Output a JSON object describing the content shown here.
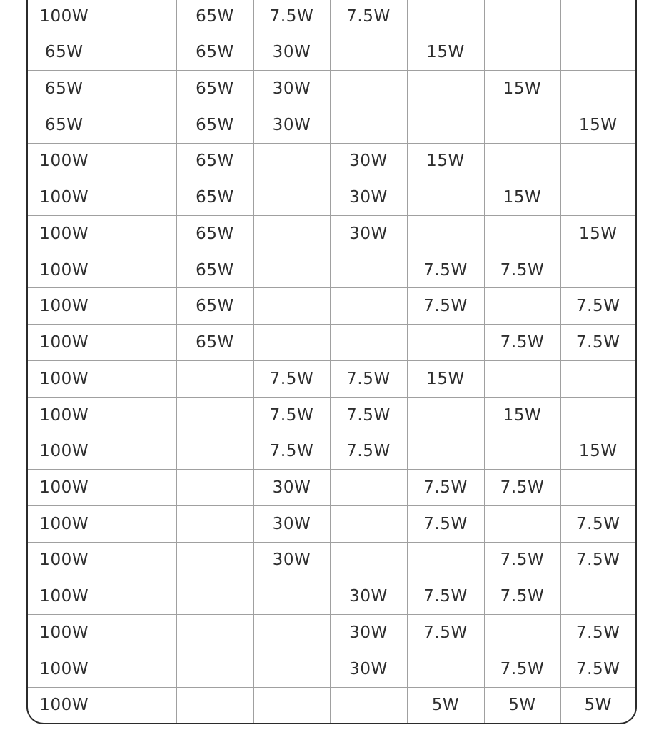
{
  "style": {
    "background": "#ffffff",
    "outer_border_color": "#2b2b2b",
    "grid_line_color": "#a0a0a0",
    "text_color": "#2e2e2e"
  },
  "chart_data": {
    "type": "table",
    "title": "",
    "num_columns": 8,
    "num_rows": 20,
    "column_headers_visible": false,
    "rows": [
      [
        "100W",
        "",
        "65W",
        "7.5W",
        "7.5W",
        "",
        "",
        ""
      ],
      [
        "65W",
        "",
        "65W",
        "30W",
        "",
        "15W",
        "",
        ""
      ],
      [
        "65W",
        "",
        "65W",
        "30W",
        "",
        "",
        "15W",
        ""
      ],
      [
        "65W",
        "",
        "65W",
        "30W",
        "",
        "",
        "",
        "15W"
      ],
      [
        "100W",
        "",
        "65W",
        "",
        "30W",
        "15W",
        "",
        ""
      ],
      [
        "100W",
        "",
        "65W",
        "",
        "30W",
        "",
        "15W",
        ""
      ],
      [
        "100W",
        "",
        "65W",
        "",
        "30W",
        "",
        "",
        "15W"
      ],
      [
        "100W",
        "",
        "65W",
        "",
        "",
        "7.5W",
        "7.5W",
        ""
      ],
      [
        "100W",
        "",
        "65W",
        "",
        "",
        "7.5W",
        "",
        "7.5W"
      ],
      [
        "100W",
        "",
        "65W",
        "",
        "",
        "",
        "7.5W",
        "7.5W"
      ],
      [
        "100W",
        "",
        "",
        "7.5W",
        "7.5W",
        "15W",
        "",
        ""
      ],
      [
        "100W",
        "",
        "",
        "7.5W",
        "7.5W",
        "",
        "15W",
        ""
      ],
      [
        "100W",
        "",
        "",
        "7.5W",
        "7.5W",
        "",
        "",
        "15W"
      ],
      [
        "100W",
        "",
        "",
        "30W",
        "",
        "7.5W",
        "7.5W",
        ""
      ],
      [
        "100W",
        "",
        "",
        "30W",
        "",
        "7.5W",
        "",
        "7.5W"
      ],
      [
        "100W",
        "",
        "",
        "30W",
        "",
        "",
        "7.5W",
        "7.5W"
      ],
      [
        "100W",
        "",
        "",
        "",
        "30W",
        "7.5W",
        "7.5W",
        ""
      ],
      [
        "100W",
        "",
        "",
        "",
        "30W",
        "7.5W",
        "",
        "7.5W"
      ],
      [
        "100W",
        "",
        "",
        "",
        "30W",
        "",
        "7.5W",
        "7.5W"
      ],
      [
        "100W",
        "",
        "",
        "",
        "",
        "5W",
        "5W",
        "5W"
      ]
    ]
  }
}
